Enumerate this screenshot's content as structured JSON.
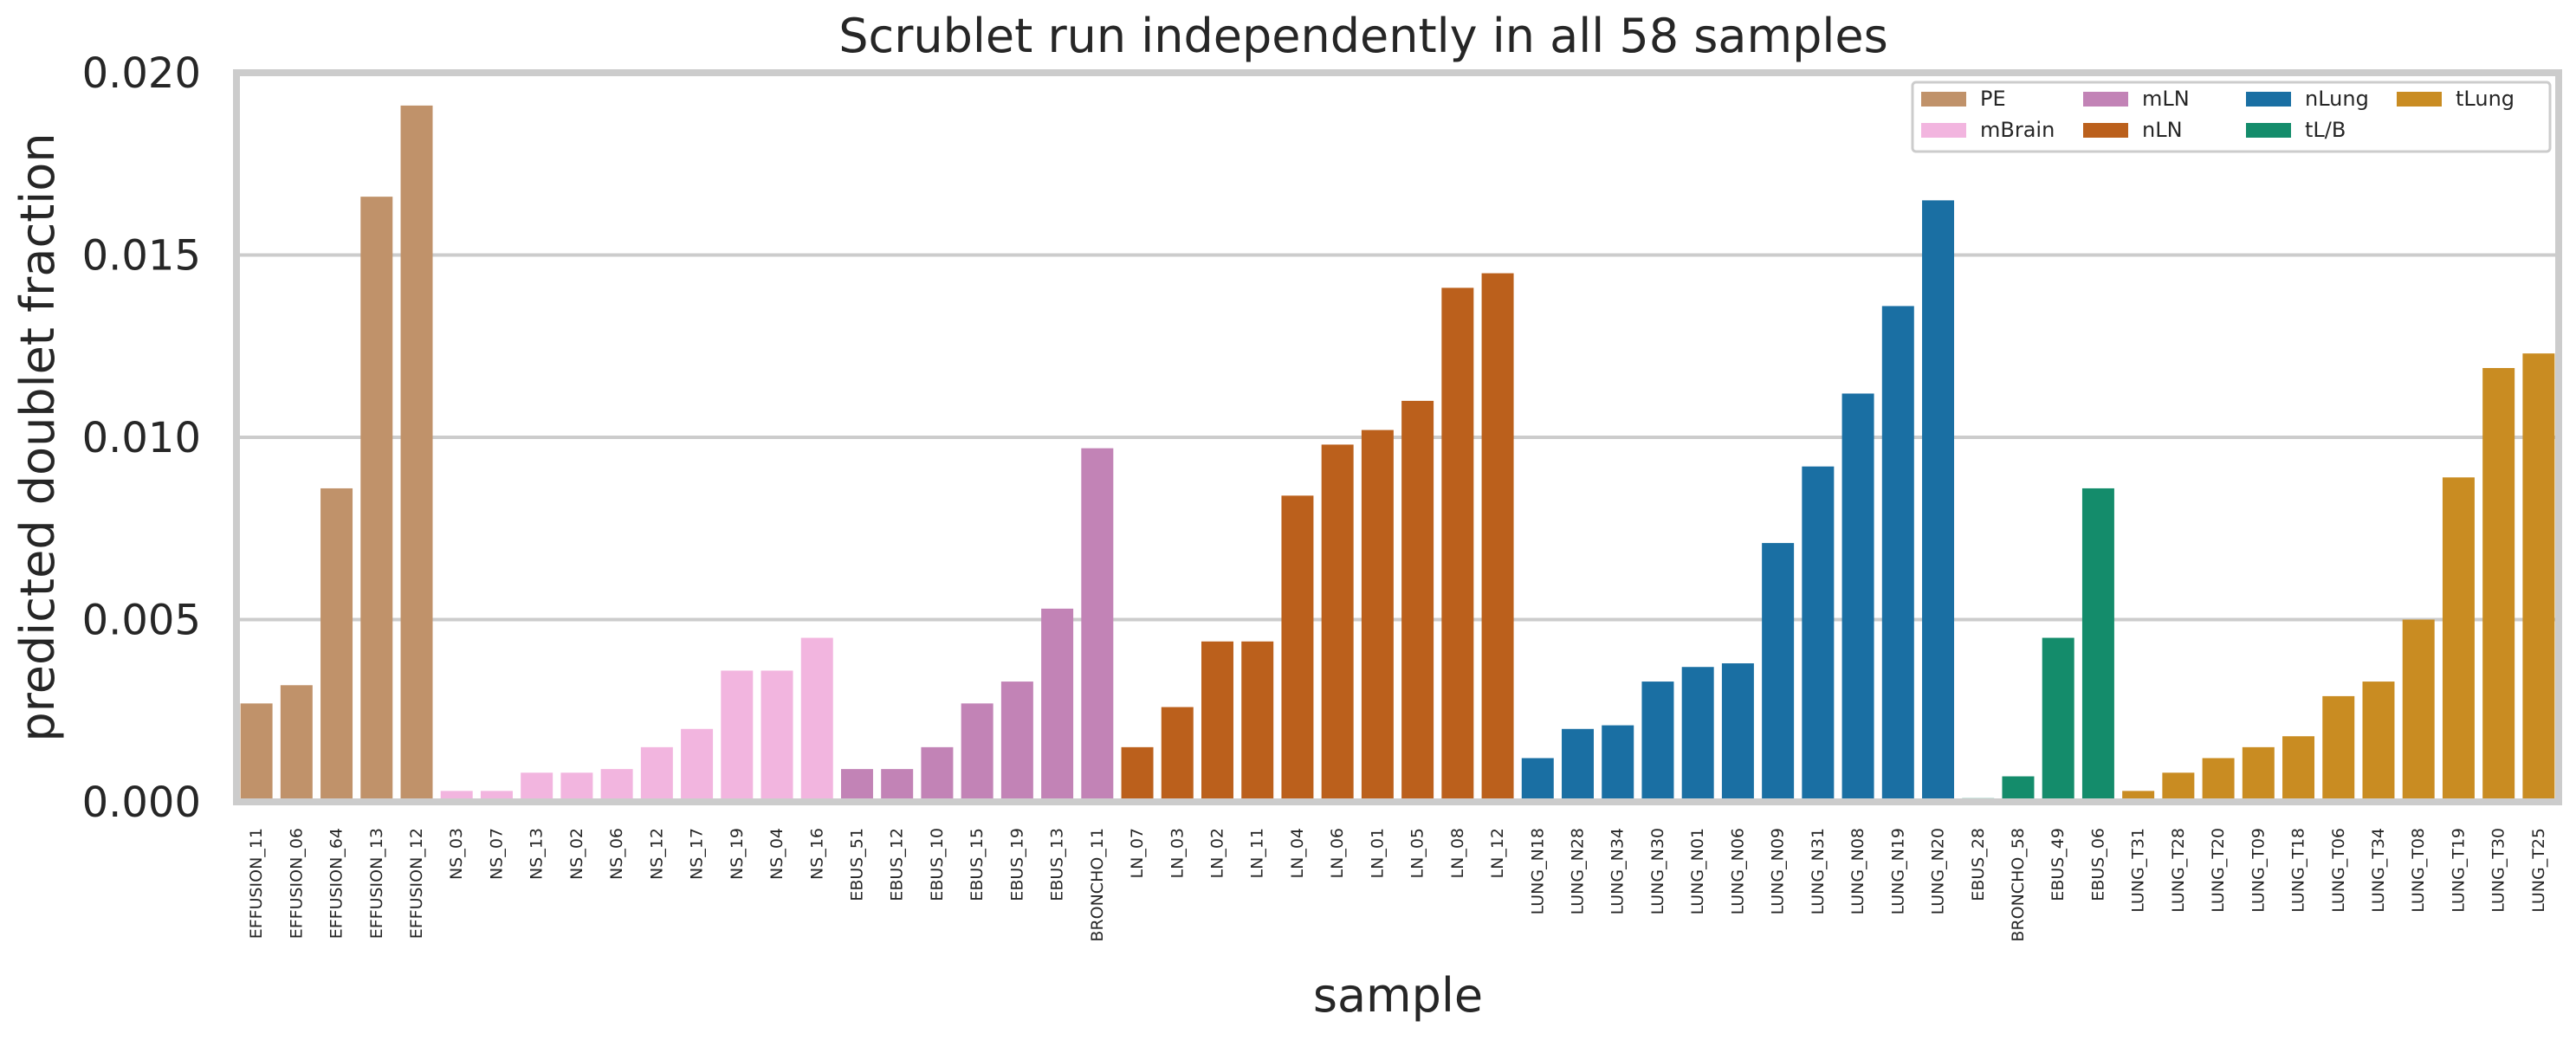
{
  "chart_data": {
    "type": "bar",
    "title": "Scrublet run independently in all 58 samples",
    "xlabel": "sample",
    "ylabel": "predicted doublet fraction",
    "ylim": [
      0,
      0.02
    ],
    "yticks": [
      "0.000",
      "0.005",
      "0.010",
      "0.015",
      "0.020"
    ],
    "grid": true,
    "legend_position": "top-right",
    "legend": [
      {
        "name": "PE",
        "color": "#c0926a"
      },
      {
        "name": "mBrain",
        "color": "#f2b5df"
      },
      {
        "name": "mLN",
        "color": "#c283b6"
      },
      {
        "name": "nLN",
        "color": "#bb601c"
      },
      {
        "name": "nLung",
        "color": "#1a6fa3"
      },
      {
        "name": "tL/B",
        "color": "#148c6b"
      },
      {
        "name": "tLung",
        "color": "#c98c22"
      }
    ],
    "categories": [
      "EFFUSION_11",
      "EFFUSION_06",
      "EFFUSION_64",
      "EFFUSION_13",
      "EFFUSION_12",
      "NS_03",
      "NS_07",
      "NS_13",
      "NS_02",
      "NS_06",
      "NS_12",
      "NS_17",
      "NS_19",
      "NS_04",
      "NS_16",
      "EBUS_51",
      "EBUS_12",
      "EBUS_10",
      "EBUS_15",
      "EBUS_19",
      "EBUS_13",
      "BRONCHO_11",
      "LN_07",
      "LN_03",
      "LN_02",
      "LN_11",
      "LN_04",
      "LN_06",
      "LN_01",
      "LN_05",
      "LN_08",
      "LN_12",
      "LUNG_N18",
      "LUNG_N28",
      "LUNG_N34",
      "LUNG_N30",
      "LUNG_N01",
      "LUNG_N06",
      "LUNG_N09",
      "LUNG_N31",
      "LUNG_N08",
      "LUNG_N19",
      "LUNG_N20",
      "EBUS_28",
      "BRONCHO_58",
      "EBUS_49",
      "EBUS_06",
      "LUNG_T31",
      "LUNG_T28",
      "LUNG_T20",
      "LUNG_T09",
      "LUNG_T18",
      "LUNG_T06",
      "LUNG_T34",
      "LUNG_T08",
      "LUNG_T19",
      "LUNG_T30",
      "LUNG_T25"
    ],
    "values": [
      0.0027,
      0.0032,
      0.0086,
      0.0166,
      0.0191,
      0.0003,
      0.0003,
      0.0008,
      0.0008,
      0.0009,
      0.0015,
      0.002,
      0.0036,
      0.0036,
      0.0045,
      0.0009,
      0.0009,
      0.0015,
      0.0027,
      0.0033,
      0.0053,
      0.0097,
      0.0015,
      0.0026,
      0.0044,
      0.0044,
      0.0084,
      0.0098,
      0.0102,
      0.011,
      0.0141,
      0.0145,
      0.0012,
      0.002,
      0.0021,
      0.0033,
      0.0037,
      0.0038,
      0.0071,
      0.0092,
      0.0112,
      0.0136,
      0.0165,
      0.0001,
      0.0007,
      0.0045,
      0.0086,
      0.0003,
      0.0008,
      0.0012,
      0.0015,
      0.0018,
      0.0029,
      0.0033,
      0.005,
      0.0089,
      0.0119,
      0.0123
    ],
    "groups": [
      "PE",
      "PE",
      "PE",
      "PE",
      "PE",
      "mBrain",
      "mBrain",
      "mBrain",
      "mBrain",
      "mBrain",
      "mBrain",
      "mBrain",
      "mBrain",
      "mBrain",
      "mBrain",
      "mLN",
      "mLN",
      "mLN",
      "mLN",
      "mLN",
      "mLN",
      "mLN",
      "nLN",
      "nLN",
      "nLN",
      "nLN",
      "nLN",
      "nLN",
      "nLN",
      "nLN",
      "nLN",
      "nLN",
      "nLung",
      "nLung",
      "nLung",
      "nLung",
      "nLung",
      "nLung",
      "nLung",
      "nLung",
      "nLung",
      "nLung",
      "nLung",
      "tL/B",
      "tL/B",
      "tL/B",
      "tL/B",
      "tLung",
      "tLung",
      "tLung",
      "tLung",
      "tLung",
      "tLung",
      "tLung",
      "tLung",
      "tLung",
      "tLung",
      "tLung"
    ]
  }
}
